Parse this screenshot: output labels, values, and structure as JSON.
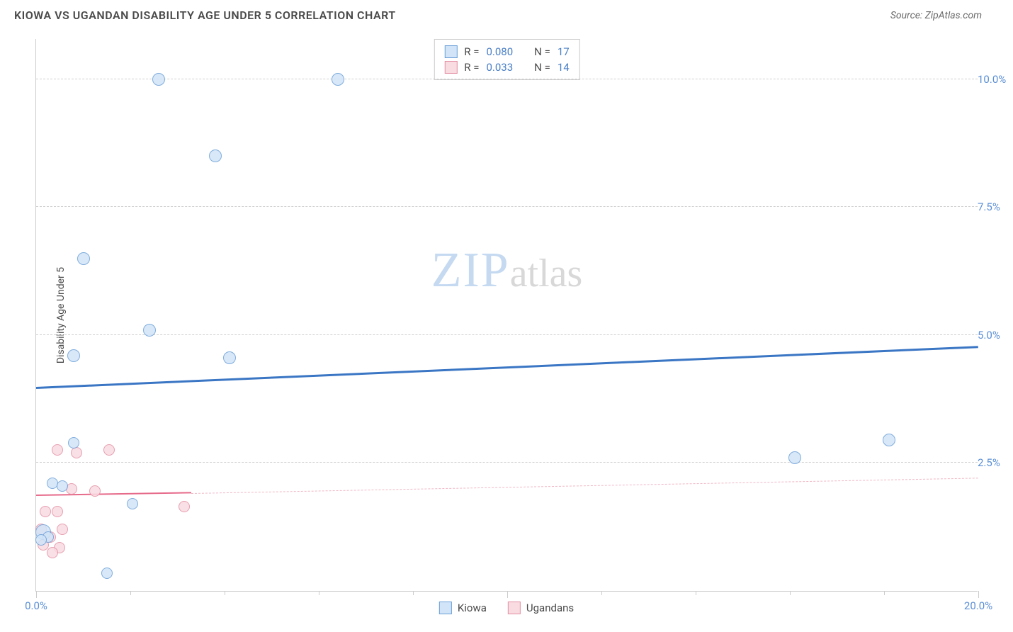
{
  "header": {
    "title": "KIOWA VS UGANDAN DISABILITY AGE UNDER 5 CORRELATION CHART",
    "source": "Source: ZipAtlas.com"
  },
  "chart": {
    "type": "scatter",
    "ylabel": "Disability Age Under 5",
    "xlim": [
      0,
      20
    ],
    "ylim": [
      0,
      10.8
    ],
    "xticks_major": [
      0,
      10,
      20
    ],
    "xticks_minor": [
      2,
      4,
      6,
      8,
      12,
      14,
      16,
      18
    ],
    "xlabels": [
      {
        "x": 0,
        "text": "0.0%"
      },
      {
        "x": 20,
        "text": "20.0%"
      }
    ],
    "ygrid": [
      {
        "y": 2.5,
        "label": "2.5%"
      },
      {
        "y": 5.0,
        "label": "5.0%"
      },
      {
        "y": 7.5,
        "label": "7.5%"
      },
      {
        "y": 10.0,
        "label": "10.0%"
      }
    ],
    "background_color": "#ffffff",
    "grid_color": "#d0d0d0",
    "axis_color": "#cccccc",
    "series": [
      {
        "name": "Kiowa",
        "fill": "#d2e4f7",
        "stroke": "#6a9fd8",
        "stroke_width": 1.5,
        "marker_radius": 9,
        "points": [
          {
            "x": 2.6,
            "y": 10.0,
            "r": 9
          },
          {
            "x": 6.4,
            "y": 10.0,
            "r": 9
          },
          {
            "x": 3.8,
            "y": 8.5,
            "r": 9
          },
          {
            "x": 1.0,
            "y": 6.5,
            "r": 9
          },
          {
            "x": 2.4,
            "y": 5.1,
            "r": 9
          },
          {
            "x": 0.8,
            "y": 4.6,
            "r": 9
          },
          {
            "x": 4.1,
            "y": 4.55,
            "r": 9
          },
          {
            "x": 0.8,
            "y": 2.9,
            "r": 8
          },
          {
            "x": 18.1,
            "y": 2.95,
            "r": 9
          },
          {
            "x": 16.1,
            "y": 2.6,
            "r": 9
          },
          {
            "x": 0.35,
            "y": 2.1,
            "r": 8
          },
          {
            "x": 0.55,
            "y": 2.05,
            "r": 8
          },
          {
            "x": 2.05,
            "y": 1.7,
            "r": 8
          },
          {
            "x": 0.15,
            "y": 1.15,
            "r": 11
          },
          {
            "x": 0.25,
            "y": 1.05,
            "r": 8
          },
          {
            "x": 0.1,
            "y": 1.0,
            "r": 8
          },
          {
            "x": 1.5,
            "y": 0.35,
            "r": 8
          }
        ],
        "trend": {
          "x1": 0,
          "y1": 3.95,
          "x2": 20,
          "y2": 4.75,
          "color": "#3a76c4",
          "width": 3,
          "dash": "solid"
        }
      },
      {
        "name": "Ugandans",
        "fill": "#f9dbe2",
        "stroke": "#e38fa3",
        "stroke_width": 1.5,
        "marker_radius": 8,
        "points": [
          {
            "x": 0.45,
            "y": 2.75,
            "r": 8
          },
          {
            "x": 0.85,
            "y": 2.7,
            "r": 8
          },
          {
            "x": 1.55,
            "y": 2.75,
            "r": 8
          },
          {
            "x": 0.75,
            "y": 2.0,
            "r": 8
          },
          {
            "x": 1.25,
            "y": 1.95,
            "r": 8
          },
          {
            "x": 0.2,
            "y": 1.55,
            "r": 8
          },
          {
            "x": 0.45,
            "y": 1.55,
            "r": 8
          },
          {
            "x": 3.15,
            "y": 1.65,
            "r": 8
          },
          {
            "x": 0.1,
            "y": 1.2,
            "r": 8
          },
          {
            "x": 0.55,
            "y": 1.2,
            "r": 8
          },
          {
            "x": 0.3,
            "y": 1.05,
            "r": 8
          },
          {
            "x": 0.15,
            "y": 0.9,
            "r": 8
          },
          {
            "x": 0.5,
            "y": 0.85,
            "r": 8
          },
          {
            "x": 0.35,
            "y": 0.75,
            "r": 8
          }
        ],
        "trend_solid": {
          "x1": 0,
          "y1": 1.85,
          "x2": 3.3,
          "y2": 1.9,
          "color": "#e66a8a",
          "width": 2.5
        },
        "trend_dash": {
          "x1": 3.3,
          "y1": 1.9,
          "x2": 20,
          "y2": 2.2,
          "color": "#f0b7c5",
          "width": 1.5
        }
      }
    ],
    "legend_top": {
      "rows": [
        {
          "swatch_fill": "#d2e4f7",
          "swatch_stroke": "#6a9fd8",
          "r_label": "R =",
          "r_val": "0.080",
          "n_label": "N =",
          "n_val": "17"
        },
        {
          "swatch_fill": "#f9dbe2",
          "swatch_stroke": "#e38fa3",
          "r_label": "R =",
          "r_val": "0.033",
          "n_label": "N =",
          "n_val": "14"
        }
      ]
    },
    "legend_bottom": [
      {
        "swatch_fill": "#d2e4f7",
        "swatch_stroke": "#6a9fd8",
        "label": "Kiowa"
      },
      {
        "swatch_fill": "#f9dbe2",
        "swatch_stroke": "#e38fa3",
        "label": "Ugandans"
      }
    ],
    "watermark": {
      "a": "ZIP",
      "b": "atlas"
    }
  }
}
